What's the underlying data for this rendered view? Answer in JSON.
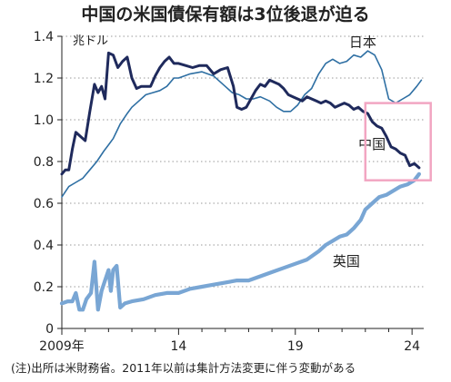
{
  "title": "中国の米国債保有額は3位後退が迫る",
  "note": "(注)出所は米財務省。2011年以前は集計方法変更に伴う変動がある",
  "colors": {
    "japan": "#2e6fa3",
    "china": "#1f2a5c",
    "uk": "#79a6d4",
    "highlight": "#f2a6c2",
    "axis": "#222222",
    "grid": "#9a9a9a"
  },
  "chart_data": {
    "type": "line",
    "title": "中国の米国債保有額は3位後退が迫る",
    "ylabel": "兆ドル",
    "xlabel": "",
    "ylim": [
      0,
      1.4
    ],
    "xlim": [
      2009.0,
      2024.5
    ],
    "yticks": [
      0,
      0.2,
      0.4,
      0.6,
      0.8,
      1.0,
      1.2,
      1.4
    ],
    "ytick_labels": [
      "0",
      "0.2",
      "0.4",
      "0.6",
      "0.8",
      "1.0",
      "1.2",
      "1.4"
    ],
    "xticks": [
      2009,
      2014,
      2019,
      2024
    ],
    "xtick_labels": [
      "2009年",
      "14",
      "19",
      "24"
    ],
    "grid": true,
    "highlight_region": {
      "x": [
        2022.0,
        2024.8
      ],
      "y": [
        0.71,
        1.08
      ]
    },
    "series": [
      {
        "name": "日本",
        "color": "#2e6fa3",
        "x": [
          2009.0,
          2009.3,
          2009.6,
          2009.9,
          2010.2,
          2010.5,
          2010.8,
          2011.0,
          2011.2,
          2011.5,
          2011.8,
          2012.0,
          2012.3,
          2012.6,
          2012.9,
          2013.2,
          2013.5,
          2013.8,
          2014.0,
          2014.5,
          2015.0,
          2015.5,
          2016.0,
          2016.3,
          2016.6,
          2016.9,
          2017.2,
          2017.5,
          2017.9,
          2018.2,
          2018.5,
          2018.8,
          2019.1,
          2019.4,
          2019.7,
          2020.0,
          2020.3,
          2020.6,
          2020.9,
          2021.2,
          2021.5,
          2021.8,
          2022.1,
          2022.4,
          2022.7,
          2023.0,
          2023.3,
          2023.6,
          2023.9,
          2024.2,
          2024.4
        ],
        "values": [
          0.63,
          0.68,
          0.7,
          0.72,
          0.76,
          0.8,
          0.85,
          0.88,
          0.91,
          0.98,
          1.03,
          1.06,
          1.09,
          1.12,
          1.13,
          1.14,
          1.16,
          1.2,
          1.2,
          1.22,
          1.23,
          1.21,
          1.16,
          1.13,
          1.12,
          1.1,
          1.1,
          1.11,
          1.09,
          1.06,
          1.04,
          1.04,
          1.07,
          1.12,
          1.15,
          1.22,
          1.27,
          1.29,
          1.27,
          1.28,
          1.31,
          1.3,
          1.33,
          1.31,
          1.24,
          1.1,
          1.08,
          1.1,
          1.12,
          1.16,
          1.19
        ]
      },
      {
        "name": "中国",
        "color": "#1f2a5c",
        "x": [
          2009.0,
          2009.15,
          2009.3,
          2009.45,
          2009.6,
          2009.8,
          2010.0,
          2010.2,
          2010.4,
          2010.55,
          2010.7,
          2010.85,
          2011.0,
          2011.2,
          2011.4,
          2011.6,
          2011.8,
          2012.0,
          2012.2,
          2012.4,
          2012.6,
          2012.8,
          2013.0,
          2013.2,
          2013.4,
          2013.6,
          2013.8,
          2014.0,
          2014.3,
          2014.6,
          2014.9,
          2015.2,
          2015.5,
          2015.8,
          2016.1,
          2016.35,
          2016.5,
          2016.7,
          2016.9,
          2017.1,
          2017.3,
          2017.5,
          2017.7,
          2017.9,
          2018.1,
          2018.3,
          2018.5,
          2018.7,
          2018.9,
          2019.1,
          2019.3,
          2019.5,
          2019.7,
          2019.9,
          2020.1,
          2020.3,
          2020.5,
          2020.7,
          2020.9,
          2021.1,
          2021.3,
          2021.5,
          2021.7,
          2021.9,
          2022.1,
          2022.3,
          2022.5,
          2022.7,
          2022.9,
          2023.1,
          2023.3,
          2023.5,
          2023.7,
          2023.9,
          2024.1,
          2024.3
        ],
        "values": [
          0.74,
          0.76,
          0.76,
          0.86,
          0.94,
          0.92,
          0.9,
          1.04,
          1.17,
          1.13,
          1.16,
          1.1,
          1.32,
          1.31,
          1.25,
          1.28,
          1.3,
          1.2,
          1.15,
          1.16,
          1.16,
          1.16,
          1.21,
          1.25,
          1.28,
          1.3,
          1.27,
          1.27,
          1.26,
          1.25,
          1.26,
          1.26,
          1.22,
          1.24,
          1.25,
          1.16,
          1.06,
          1.05,
          1.06,
          1.1,
          1.14,
          1.17,
          1.16,
          1.19,
          1.18,
          1.17,
          1.15,
          1.12,
          1.11,
          1.1,
          1.09,
          1.11,
          1.1,
          1.09,
          1.08,
          1.09,
          1.08,
          1.06,
          1.07,
          1.08,
          1.07,
          1.05,
          1.06,
          1.04,
          1.03,
          0.99,
          0.97,
          0.96,
          0.92,
          0.87,
          0.86,
          0.84,
          0.83,
          0.78,
          0.79,
          0.77
        ]
      },
      {
        "name": "英国",
        "color": "#79a6d4",
        "x": [
          2009.0,
          2009.25,
          2009.45,
          2009.6,
          2009.75,
          2009.9,
          2010.05,
          2010.25,
          2010.4,
          2010.55,
          2010.7,
          2010.85,
          2011.0,
          2011.1,
          2011.2,
          2011.35,
          2011.5,
          2011.7,
          2012.0,
          2012.5,
          2013.0,
          2013.5,
          2014.0,
          2014.5,
          2015.0,
          2015.5,
          2016.0,
          2016.5,
          2017.0,
          2017.5,
          2018.0,
          2018.5,
          2019.0,
          2019.5,
          2020.0,
          2020.3,
          2020.6,
          2020.9,
          2021.2,
          2021.5,
          2021.8,
          2022.0,
          2022.3,
          2022.6,
          2022.9,
          2023.2,
          2023.5,
          2023.8,
          2024.1,
          2024.3
        ],
        "values": [
          0.12,
          0.13,
          0.13,
          0.17,
          0.09,
          0.09,
          0.14,
          0.17,
          0.32,
          0.09,
          0.18,
          0.23,
          0.28,
          0.18,
          0.28,
          0.3,
          0.1,
          0.12,
          0.13,
          0.14,
          0.16,
          0.17,
          0.17,
          0.19,
          0.2,
          0.21,
          0.22,
          0.23,
          0.23,
          0.25,
          0.27,
          0.29,
          0.31,
          0.33,
          0.37,
          0.4,
          0.42,
          0.44,
          0.45,
          0.48,
          0.52,
          0.57,
          0.6,
          0.63,
          0.64,
          0.66,
          0.68,
          0.69,
          0.71,
          0.74
        ]
      }
    ]
  }
}
